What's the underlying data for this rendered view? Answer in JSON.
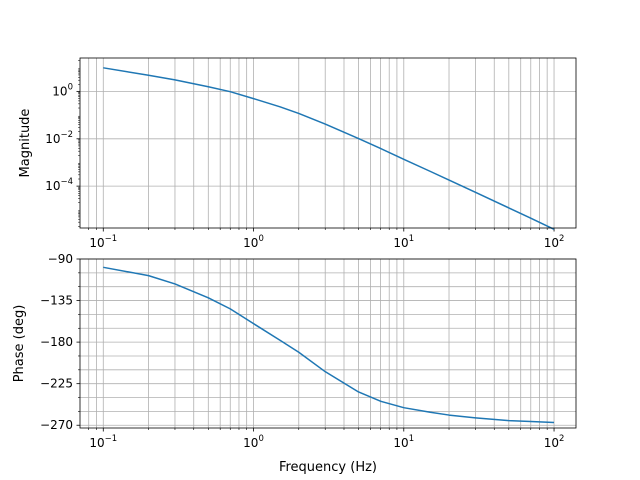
{
  "chart_data": [
    {
      "type": "line",
      "xscale": "log",
      "yscale": "log",
      "xlabel": "",
      "ylabel": "Magnitude",
      "xlim": [
        0.07,
        140
      ],
      "ylim": [
        1.7e-06,
        26
      ],
      "grid": true,
      "grid_minor_x": true,
      "x_ticks": [
        {
          "base": "10",
          "exp": "−1",
          "value": 0.1
        },
        {
          "base": "10",
          "exp": "0",
          "value": 1
        },
        {
          "base": "10",
          "exp": "1",
          "value": 10
        },
        {
          "base": "10",
          "exp": "2",
          "value": 100
        }
      ],
      "y_ticks": [
        {
          "base": "10",
          "exp": "−4",
          "value": 0.0001
        },
        {
          "base": "10",
          "exp": "−2",
          "value": 0.01
        },
        {
          "base": "10",
          "exp": "0",
          "value": 1
        }
      ],
      "series": [
        {
          "color": "#1f77b4",
          "x": [
            0.1,
            0.2,
            0.3,
            0.5,
            0.7,
            1,
            1.5,
            2,
            3,
            5,
            7,
            10,
            15,
            20,
            30,
            50,
            70,
            100
          ],
          "y": [
            10,
            4.86,
            3.09,
            1.59,
            0.98,
            0.5,
            0.225,
            0.118,
            0.042,
            0.0102,
            0.0039,
            0.00136,
            0.00042,
            0.000181,
            5.48e-05,
            1.2e-05,
            4.4e-06,
            1.5e-06
          ]
        }
      ]
    },
    {
      "type": "line",
      "xscale": "log",
      "yscale": "linear",
      "xlabel": "Frequency (Hz)",
      "ylabel": "Phase (deg)",
      "xlim": [
        0.07,
        140
      ],
      "ylim": [
        -273,
        -90
      ],
      "grid": true,
      "grid_minor_x": true,
      "grid_minor_y": true,
      "x_ticks": [
        {
          "base": "10",
          "exp": "−1",
          "value": 0.1
        },
        {
          "base": "10",
          "exp": "0",
          "value": 1
        },
        {
          "base": "10",
          "exp": "1",
          "value": 10
        },
        {
          "base": "10",
          "exp": "2",
          "value": 100
        }
      ],
      "y_ticks": [
        {
          "label": "−90",
          "value": -90
        },
        {
          "label": "−135",
          "value": -135
        },
        {
          "label": "−180",
          "value": -180
        },
        {
          "label": "−225",
          "value": -225
        },
        {
          "label": "−270",
          "value": -270
        }
      ],
      "y_minor_step": 15,
      "series": [
        {
          "color": "#1f77b4",
          "x": [
            0.1,
            0.2,
            0.3,
            0.5,
            0.7,
            1,
            1.5,
            2,
            3,
            5,
            7,
            10,
            15,
            20,
            30,
            50,
            70,
            100
          ],
          "y": [
            -99,
            -108,
            -117,
            -132,
            -144,
            -160,
            -178,
            -191,
            -212,
            -234,
            -244,
            -251,
            -256,
            -259,
            -262,
            -265,
            -266,
            -267
          ]
        }
      ]
    }
  ]
}
